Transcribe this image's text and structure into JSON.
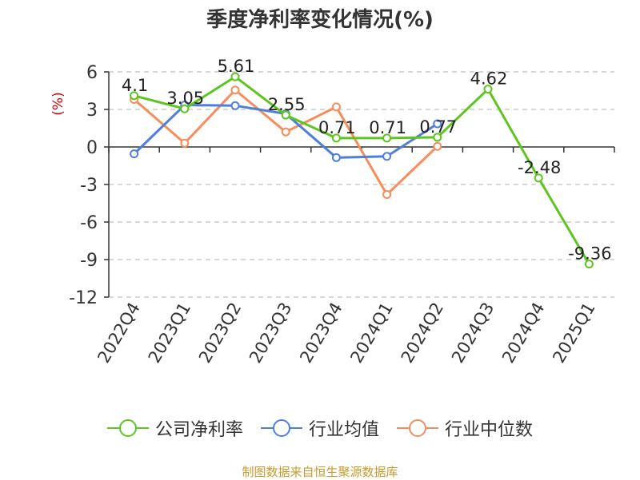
{
  "title": "季度净利率变化情况(%)",
  "source_note": "制图数据来自恒生聚源数据库",
  "chart_data": {
    "type": "line",
    "title": "季度净利率变化情况(%)",
    "ylabel": "(%)",
    "ylabel_color": "#cc0000",
    "categories": [
      "2022Q4",
      "2023Q1",
      "2023Q2",
      "2023Q3",
      "2023Q4",
      "2024Q1",
      "2024Q2",
      "2024Q3",
      "2024Q4",
      "2025Q1"
    ],
    "ylim": [
      -12,
      6
    ],
    "yticks": [
      6,
      3,
      0,
      -3,
      -6,
      -9,
      -12
    ],
    "ytick_labels": [
      "6",
      "3",
      "0",
      "-3",
      "-6",
      "-9",
      "-12"
    ],
    "grid": true,
    "legend_position": "bottom",
    "series": [
      {
        "name": "公司净利率",
        "color": "#5cc61f",
        "values": [
          4.1,
          3.05,
          5.61,
          2.55,
          0.71,
          0.71,
          0.77,
          4.62,
          -2.48,
          -9.36
        ],
        "labels": [
          "4.1",
          "3.05",
          "5.61",
          "2.55",
          "0.71",
          "0.71",
          "0.77",
          "4.62",
          "-2.48",
          "-9.36"
        ]
      },
      {
        "name": "行业均值",
        "color": "#4f7fdc",
        "values": [
          -0.55,
          3.35,
          3.3,
          2.65,
          -0.85,
          -0.75,
          1.85,
          null,
          null,
          null
        ]
      },
      {
        "name": "行业中位数",
        "color": "#f68d5c",
        "values": [
          3.8,
          0.3,
          4.55,
          1.2,
          3.2,
          -3.8,
          0.05,
          null,
          null,
          null
        ]
      }
    ]
  }
}
